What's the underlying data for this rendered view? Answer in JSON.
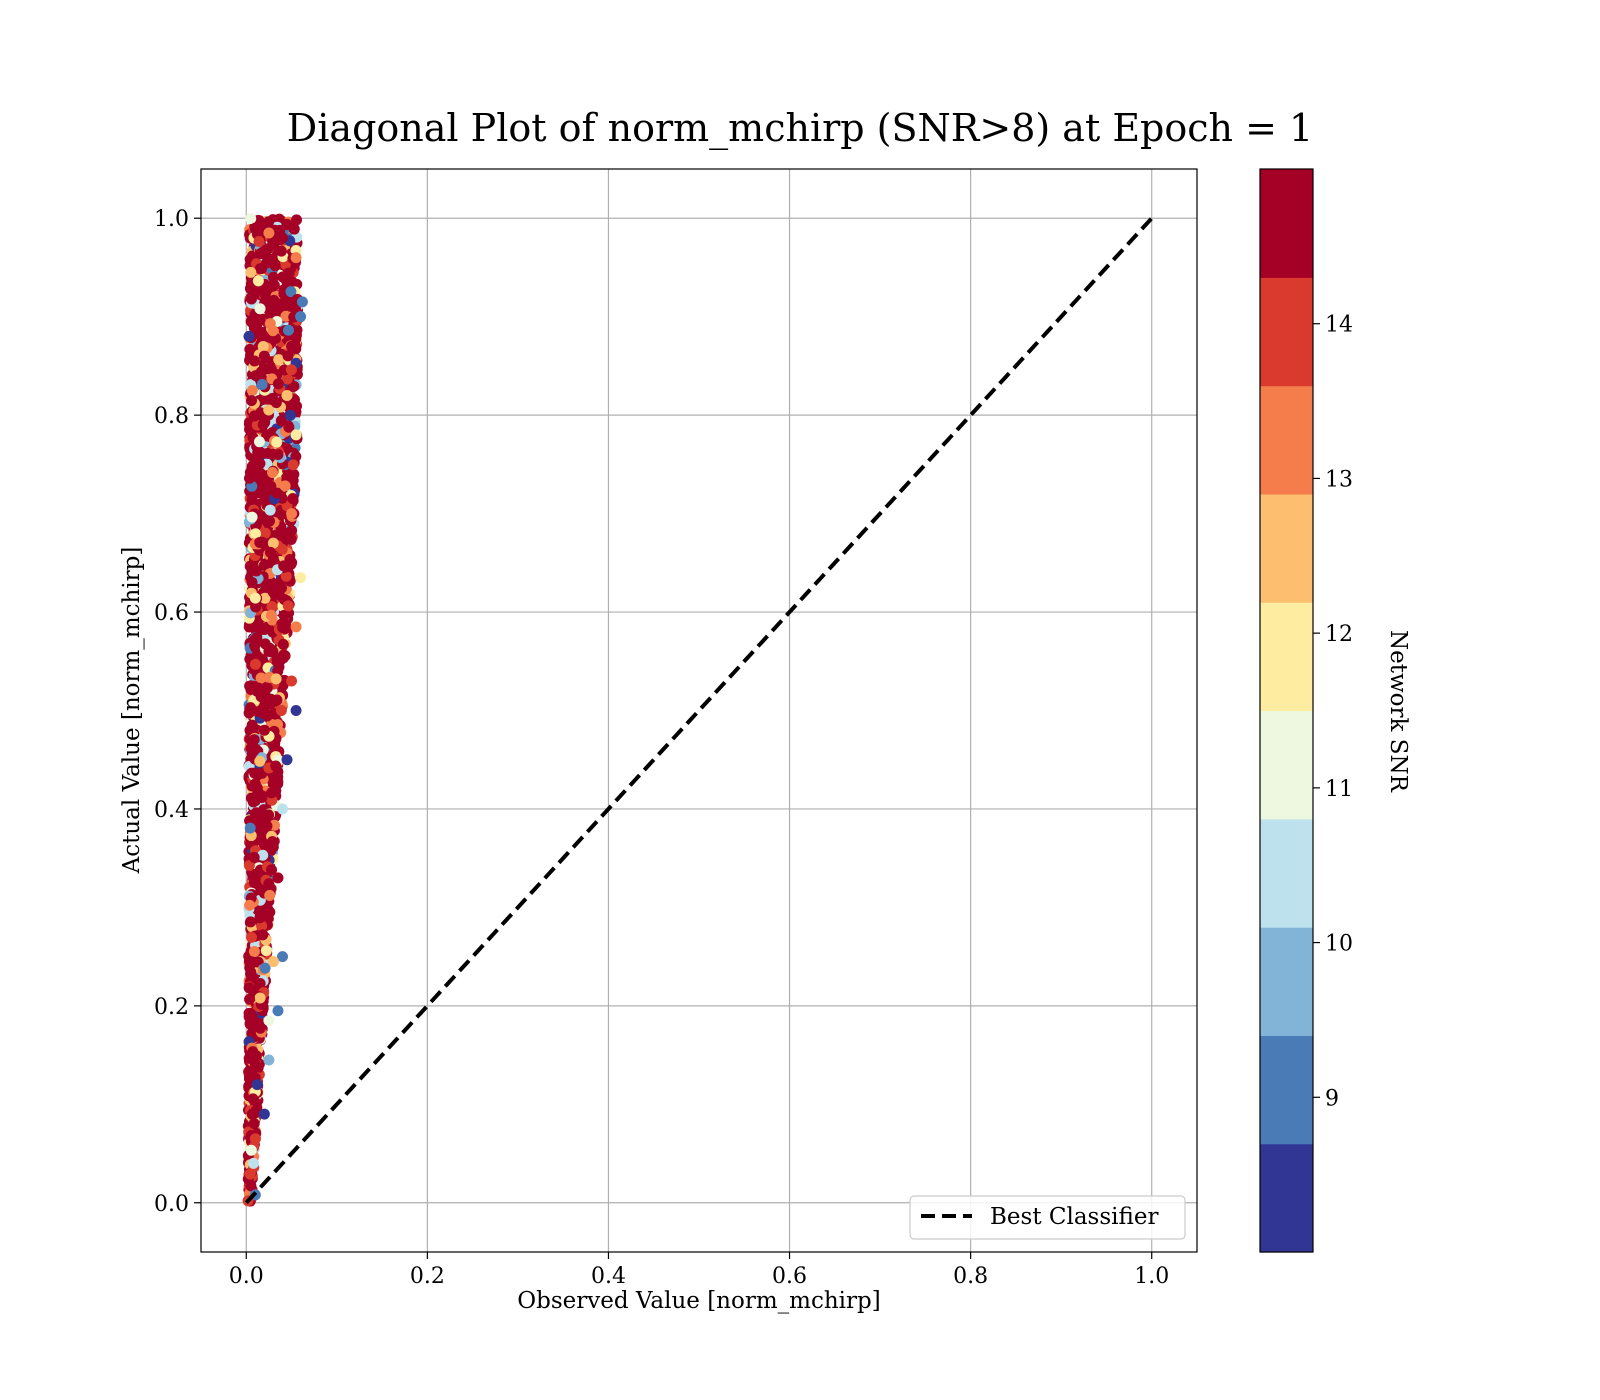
{
  "chart_data": {
    "type": "scatter",
    "title": "Diagonal Plot of norm_mchirp (SNR>8) at Epoch = 1",
    "xlabel": "Observed Value [norm_mchirp]",
    "ylabel": "Actual Value [norm_mchirp]",
    "xlim": [
      -0.05,
      1.05
    ],
    "ylim": [
      -0.05,
      1.05
    ],
    "xticks": [
      "0.0",
      "0.2",
      "0.4",
      "0.6",
      "0.8",
      "1.0"
    ],
    "yticks": [
      "0.0",
      "0.2",
      "0.4",
      "0.6",
      "0.8",
      "1.0"
    ],
    "grid": true,
    "legend": {
      "position": "lower-right",
      "entries": [
        "Best Classifier"
      ]
    },
    "reference_line": {
      "name": "Best Classifier",
      "style": "dashed",
      "color": "#000000",
      "x": [
        0,
        1
      ],
      "y": [
        0,
        1
      ]
    },
    "colorbar": {
      "label": "Network SNR",
      "range": [
        8,
        15
      ],
      "ticks": [
        "9",
        "10",
        "11",
        "12",
        "13",
        "14"
      ],
      "levels": [
        {
          "from": 8.0,
          "to": 8.7,
          "color": "#313695"
        },
        {
          "from": 8.7,
          "to": 9.4,
          "color": "#4a7bb7"
        },
        {
          "from": 9.4,
          "to": 10.1,
          "color": "#81b4d6"
        },
        {
          "from": 10.1,
          "to": 10.8,
          "color": "#bde2ed"
        },
        {
          "from": 10.8,
          "to": 11.5,
          "color": "#eef7e0"
        },
        {
          "from": 11.5,
          "to": 12.2,
          "color": "#feeda1"
        },
        {
          "from": 12.2,
          "to": 12.9,
          "color": "#fdbe70"
        },
        {
          "from": 12.9,
          "to": 13.6,
          "color": "#f57c4b"
        },
        {
          "from": 13.6,
          "to": 14.3,
          "color": "#d93a2d"
        },
        {
          "from": 14.3,
          "to": 15.0,
          "color": "#a50026"
        }
      ]
    },
    "series": [
      {
        "points": [
          {
            "x": 0.01,
            "y": 0.99,
            "snr": 14.6
          },
          {
            "x": 0.025,
            "y": 0.985,
            "snr": 13.2
          },
          {
            "x": 0.04,
            "y": 0.98,
            "snr": 14.8
          },
          {
            "x": 0.055,
            "y": 0.96,
            "snr": 13.0
          },
          {
            "x": 0.062,
            "y": 0.915,
            "snr": 9.0
          },
          {
            "x": 0.06,
            "y": 0.9,
            "snr": 9.1
          },
          {
            "x": 0.005,
            "y": 0.945,
            "snr": 12.5
          },
          {
            "x": 0.003,
            "y": 0.88,
            "snr": 8.2
          },
          {
            "x": 0.03,
            "y": 0.94,
            "snr": 14.9
          },
          {
            "x": 0.05,
            "y": 0.87,
            "snr": 14.7
          },
          {
            "x": 0.02,
            "y": 0.86,
            "snr": 14.9
          },
          {
            "x": 0.045,
            "y": 0.82,
            "snr": 12.4
          },
          {
            "x": 0.055,
            "y": 0.78,
            "snr": 12.0
          },
          {
            "x": 0.035,
            "y": 0.76,
            "snr": 14.9
          },
          {
            "x": 0.05,
            "y": 0.7,
            "snr": 13.1
          },
          {
            "x": 0.06,
            "y": 0.635,
            "snr": 11.9
          },
          {
            "x": 0.055,
            "y": 0.585,
            "snr": 13.0
          },
          {
            "x": 0.03,
            "y": 0.62,
            "snr": 14.9
          },
          {
            "x": 0.05,
            "y": 0.53,
            "snr": 13.9
          },
          {
            "x": 0.055,
            "y": 0.5,
            "snr": 8.3
          },
          {
            "x": 0.025,
            "y": 0.56,
            "snr": 14.9
          },
          {
            "x": 0.045,
            "y": 0.45,
            "snr": 8.5
          },
          {
            "x": 0.02,
            "y": 0.48,
            "snr": 14.8
          },
          {
            "x": 0.04,
            "y": 0.4,
            "snr": 10.4
          },
          {
            "x": 0.035,
            "y": 0.33,
            "snr": 14.9
          },
          {
            "x": 0.04,
            "y": 0.25,
            "snr": 9.0
          },
          {
            "x": 0.03,
            "y": 0.245,
            "snr": 12.8
          },
          {
            "x": 0.035,
            "y": 0.195,
            "snr": 9.2
          },
          {
            "x": 0.025,
            "y": 0.185,
            "snr": 11.2
          },
          {
            "x": 0.025,
            "y": 0.145,
            "snr": 9.4
          },
          {
            "x": 0.02,
            "y": 0.09,
            "snr": 8.2
          },
          {
            "x": 0.012,
            "y": 0.12,
            "snr": 8.6
          },
          {
            "x": 0.01,
            "y": 0.065,
            "snr": 13.8
          },
          {
            "x": 0.008,
            "y": 0.04,
            "snr": 10.4
          },
          {
            "x": 0.01,
            "y": 0.008,
            "snr": 9.0
          },
          {
            "x": 0.002,
            "y": 0.002,
            "snr": 14.2
          }
        ]
      }
    ]
  }
}
